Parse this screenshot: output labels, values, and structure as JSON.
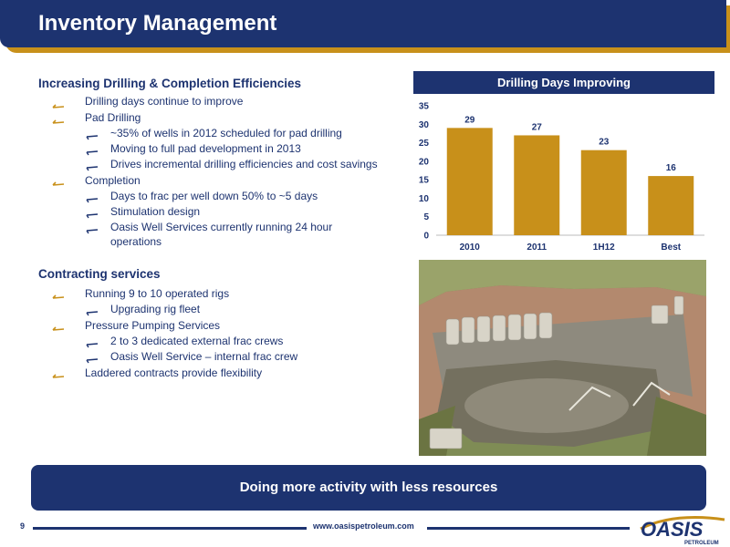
{
  "header": {
    "title": "Inventory Management"
  },
  "sections": [
    {
      "heading": "Increasing Drilling & Completion Efficiencies",
      "items": [
        {
          "text": "Drilling days continue to improve",
          "children": []
        },
        {
          "text": "Pad Drilling",
          "children": [
            "~35% of wells in 2012 scheduled for pad drilling",
            "Moving to full pad development in 2013",
            "Drives incremental drilling efficiencies and cost savings"
          ]
        },
        {
          "text": "Completion",
          "children": [
            "Days to frac per well down 50% to ~5 days",
            "Stimulation design",
            "Oasis Well Services currently running 24 hour",
            "operations"
          ]
        }
      ]
    },
    {
      "heading": "Contracting services",
      "items": [
        {
          "text": "Running 9 to 10 operated rigs",
          "children": [
            "Upgrading rig fleet"
          ]
        },
        {
          "text": "Pressure Pumping Services",
          "children": [
            "2 to 3 dedicated external frac crews",
            "Oasis Well Service – internal frac crew"
          ]
        },
        {
          "text": "Laddered contracts provide flexibility",
          "children": []
        }
      ]
    }
  ],
  "chart_title": "Drilling Days Improving",
  "chart_data": {
    "type": "bar",
    "title": "Drilling Days Improving",
    "categories": [
      "2010",
      "2011",
      "1H12",
      "Best"
    ],
    "values": [
      29,
      27,
      23,
      16
    ],
    "data_labels": [
      "29",
      "27",
      "23",
      "16"
    ],
    "ylim": [
      0,
      35
    ],
    "yticks": [
      0,
      5,
      10,
      15,
      20,
      25,
      30,
      35
    ],
    "xlabel": "",
    "ylabel": "",
    "grid": false,
    "bar_color": "#c8901a"
  },
  "banner": {
    "text": "Doing more activity with less resources"
  },
  "footer": {
    "page_number": "9",
    "url": "www.oasispetroleum.com",
    "logo_text": "OASIS",
    "logo_subtext": "PETROLEUM"
  },
  "colors": {
    "navy": "#1d3370",
    "gold": "#c8901a"
  }
}
